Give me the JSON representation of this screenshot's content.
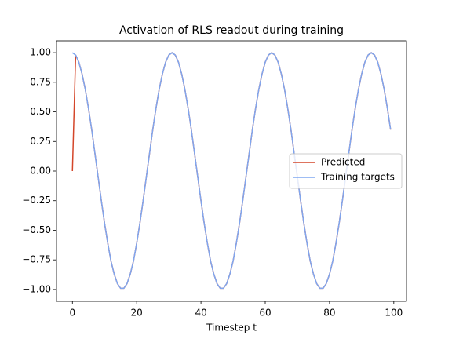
{
  "chart_data": {
    "type": "line",
    "title": "Activation of RLS readout during training",
    "xlabel": "Timestep t",
    "x": [
      0,
      1,
      2,
      3,
      4,
      5,
      6,
      7,
      8,
      9,
      10,
      11,
      12,
      13,
      14,
      15,
      16,
      17,
      18,
      19,
      20,
      21,
      22,
      23,
      24,
      25,
      26,
      27,
      28,
      29,
      30,
      31,
      32,
      33,
      34,
      35,
      36,
      37,
      38,
      39,
      40,
      41,
      42,
      43,
      44,
      45,
      46,
      47,
      48,
      49,
      50,
      51,
      52,
      53,
      54,
      55,
      56,
      57,
      58,
      59,
      60,
      61,
      62,
      63,
      64,
      65,
      66,
      67,
      68,
      69,
      70,
      71,
      72,
      73,
      74,
      75,
      76,
      77,
      78,
      79,
      80,
      81,
      82,
      83,
      84,
      85,
      86,
      87,
      88,
      89,
      90,
      91,
      92,
      93,
      94,
      95,
      96,
      97,
      98,
      99
    ],
    "series": [
      {
        "name": "Predicted",
        "color": "#d4462a",
        "values": [
          0,
          0.98,
          0.92,
          0.82,
          0.69,
          0.53,
          0.35,
          0.15,
          -0.05,
          -0.25,
          -0.44,
          -0.61,
          -0.76,
          -0.87,
          -0.95,
          -0.99,
          -0.99,
          -0.95,
          -0.87,
          -0.76,
          -0.61,
          -0.44,
          -0.25,
          -0.05,
          0.15,
          0.35,
          0.53,
          0.69,
          0.82,
          0.92,
          0.98,
          1,
          0.98,
          0.92,
          0.82,
          0.69,
          0.53,
          0.35,
          0.15,
          -0.05,
          -0.25,
          -0.44,
          -0.61,
          -0.76,
          -0.87,
          -0.95,
          -0.99,
          -0.99,
          -0.95,
          -0.87,
          -0.76,
          -0.61,
          -0.44,
          -0.25,
          -0.05,
          0.15,
          0.35,
          0.53,
          0.69,
          0.82,
          0.92,
          0.98,
          1,
          0.98,
          0.92,
          0.82,
          0.69,
          0.53,
          0.35,
          0.15,
          -0.05,
          -0.25,
          -0.44,
          -0.61,
          -0.76,
          -0.87,
          -0.95,
          -0.99,
          -0.99,
          -0.95,
          -0.87,
          -0.76,
          -0.61,
          -0.44,
          -0.25,
          -0.05,
          0.15,
          0.35,
          0.53,
          0.69,
          0.82,
          0.92,
          0.98,
          1,
          0.98,
          0.92,
          0.82,
          0.69,
          0.53,
          0.35
        ]
      },
      {
        "name": "Training targets",
        "color": "#7fa7f0",
        "values": [
          1,
          0.98,
          0.92,
          0.82,
          0.69,
          0.53,
          0.35,
          0.15,
          -0.05,
          -0.25,
          -0.44,
          -0.61,
          -0.76,
          -0.87,
          -0.95,
          -0.99,
          -0.99,
          -0.95,
          -0.87,
          -0.76,
          -0.61,
          -0.44,
          -0.25,
          -0.05,
          0.15,
          0.35,
          0.53,
          0.69,
          0.82,
          0.92,
          0.98,
          1,
          0.98,
          0.92,
          0.82,
          0.69,
          0.53,
          0.35,
          0.15,
          -0.05,
          -0.25,
          -0.44,
          -0.61,
          -0.76,
          -0.87,
          -0.95,
          -0.99,
          -0.99,
          -0.95,
          -0.87,
          -0.76,
          -0.61,
          -0.44,
          -0.25,
          -0.05,
          0.15,
          0.35,
          0.53,
          0.69,
          0.82,
          0.92,
          0.98,
          1,
          0.98,
          0.92,
          0.82,
          0.69,
          0.53,
          0.35,
          0.15,
          -0.05,
          -0.25,
          -0.44,
          -0.61,
          -0.76,
          -0.87,
          -0.95,
          -0.99,
          -0.99,
          -0.95,
          -0.87,
          -0.76,
          -0.61,
          -0.44,
          -0.25,
          -0.05,
          0.15,
          0.35,
          0.53,
          0.69,
          0.82,
          0.92,
          0.98,
          1,
          0.98,
          0.92,
          0.82,
          0.69,
          0.53,
          0.35
        ]
      }
    ],
    "xlim": [
      -4.95,
      103.95
    ],
    "xticks": [
      0,
      20,
      40,
      60,
      80,
      100
    ],
    "ylim": [
      -1.1,
      1.1
    ],
    "yticks": [
      {
        "value": -1,
        "label": "−1.00"
      },
      {
        "value": -0.75,
        "label": "−0.75"
      },
      {
        "value": -0.5,
        "label": "−0.50"
      },
      {
        "value": -0.25,
        "label": "−0.25"
      },
      {
        "value": 0,
        "label": "0.00"
      },
      {
        "value": 0.25,
        "label": "0.25"
      },
      {
        "value": 0.5,
        "label": "0.50"
      },
      {
        "value": 0.75,
        "label": "0.75"
      },
      {
        "value": 1,
        "label": "1.00"
      }
    ],
    "legend": "center right"
  }
}
